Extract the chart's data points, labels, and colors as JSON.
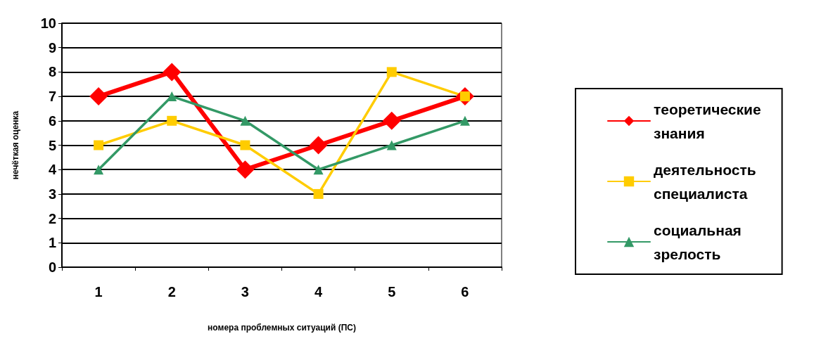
{
  "chart_data": {
    "type": "line",
    "xlabel": "номера проблемных ситуаций (ПС)",
    "ylabel": "нечёткая оценка",
    "categories": [
      "1",
      "2",
      "3",
      "4",
      "5",
      "6"
    ],
    "ylim": [
      0,
      10
    ],
    "yticks": [
      0,
      1,
      2,
      3,
      4,
      5,
      6,
      7,
      8,
      9,
      10
    ],
    "grid": "y",
    "legend": "right",
    "series": [
      {
        "name": "теоретические знания",
        "color": "#ff0000",
        "marker": "diamond",
        "values": [
          7,
          8,
          4,
          5,
          6,
          7
        ]
      },
      {
        "name": "деятельность специалиста",
        "color": "#ffcc00",
        "marker": "square",
        "values": [
          5,
          6,
          5,
          3,
          8,
          7
        ]
      },
      {
        "name": "социальная зрелость",
        "color": "#339966",
        "marker": "triangle",
        "values": [
          4,
          7,
          6,
          4,
          5,
          6
        ]
      }
    ]
  }
}
